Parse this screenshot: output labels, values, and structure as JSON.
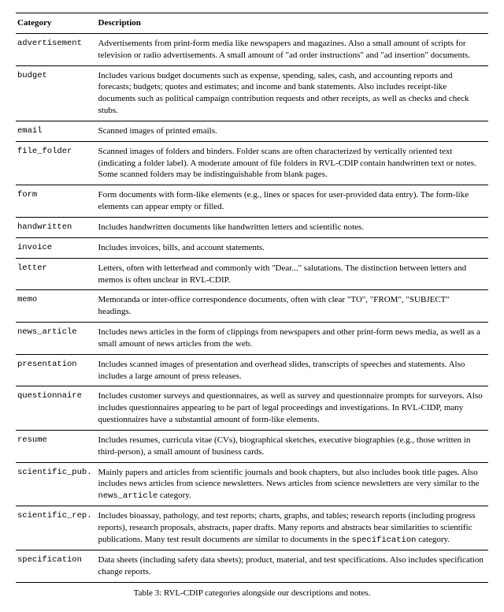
{
  "headers": {
    "category": "Category",
    "description": "Description"
  },
  "rows": [
    {
      "cat": "advertisement",
      "desc": "Advertisements from print-form media like newspapers and magazines. Also a small amount of scripts for television or radio advertisements. A small amount of \"ad order instructions\" and \"ad insertion\" documents."
    },
    {
      "cat": "budget",
      "desc": "Includes various budget documents such as expense, spending, sales, cash, and accounting reports and forecasts; budgets; quotes and estimates; and income and bank statements. Also includes receipt-like documents such as political campaign contribution requests and other receipts, as well as checks and check stubs."
    },
    {
      "cat": "email",
      "desc": "Scanned images of printed emails."
    },
    {
      "cat": "file_folder",
      "desc": "Scanned images of folders and binders. Folder scans are often characterized by vertically oriented text (indicating a folder label). A moderate amount of file folders in RVL-CDIP contain handwritten text or notes. Some scanned folders may be indistinguishable from blank pages."
    },
    {
      "cat": "form",
      "desc": "Form documents with form-like elements (e.g., lines or spaces for user-provided data entry). The form-like elements can appear empty or filled."
    },
    {
      "cat": "handwritten",
      "desc": "Includes handwritten documents like handwritten letters and scientific notes."
    },
    {
      "cat": "invoice",
      "desc": "Includes invoices, bills, and account statements."
    },
    {
      "cat": "letter",
      "desc": "Letters, often with letterhead and commonly with \"Dear...\" salutations. The distinction between letters and memos is often unclear in RVL-CDIP."
    },
    {
      "cat": "memo",
      "desc": "Memoranda or inter-office correspondence documents, often with clear \"TO\", \"FROM\", \"SUBJECT\" headings."
    },
    {
      "cat": "news_article",
      "desc": "Includes news articles in the form of clippings from newspapers and other print-form news media, as well as a small amount of news articles from the web."
    },
    {
      "cat": "presentation",
      "desc": "Includes scanned images of presentation and overhead slides, transcripts of speeches and statements. Also includes a large amount of press releases."
    },
    {
      "cat": "questionnaire",
      "desc": "Includes customer surveys and questionnaires, as well as survey and questionnaire prompts for surveyors. Also includes questionnaires appearing to be part of legal proceedings and investigations. In RVL-CIDP, many questionnaires have a substantial amount of form-like elements."
    },
    {
      "cat": "resume",
      "desc": "Includes resumes, curricula vitae (CVs), biographical sketches, executive biographies (e.g., those written in third-person), a small amount of business cards."
    },
    {
      "cat": "scientific_pub.",
      "desc": ""
    },
    {
      "cat": "scientific_rep.",
      "desc": ""
    },
    {
      "cat": "specification",
      "desc": "Data sheets (including safety data sheets); product, material, and test specifications. Also includes specification change reports."
    }
  ],
  "sci_pub": {
    "pre": "Mainly papers and articles from scientific journals and book chapters, but also includes book title pages. Also includes news articles from science newsletters. News articles from science newsletters are very similar to the ",
    "mono": "news_article",
    "post": " category."
  },
  "sci_rep": {
    "pre": "Includes bioassay, pathology, and test reports; charts, graphs, and tables; research reports (including progress reports), research proposals, abstracts, paper drafts. Many reports and abstracts bear similarities to scientific publications. Many test result documents are similar to documents in the ",
    "mono": "specification",
    "post": " category."
  },
  "caption": "Table 3: RVL-CDIP categories alongside our descriptions and notes."
}
